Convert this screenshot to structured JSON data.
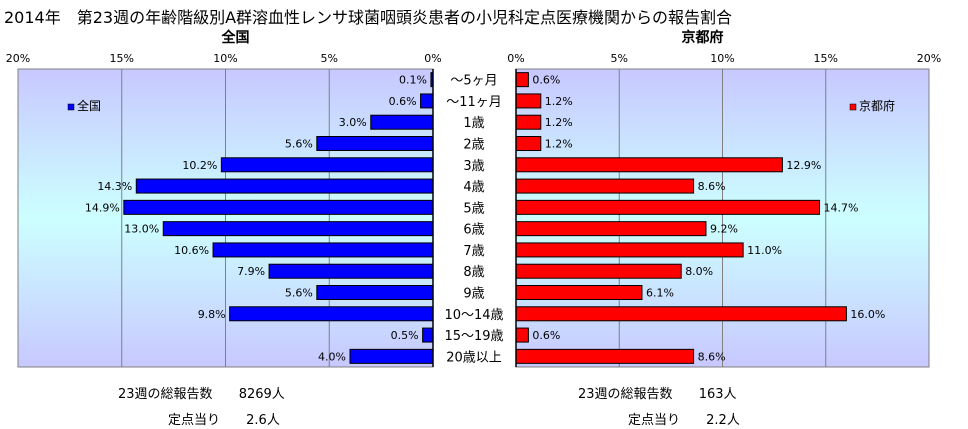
{
  "title": "2014年　第23週の年齢階級別A群溶血性レンサ球菌咽頭炎患者の小児科定点医療機関からの報告割合",
  "left_stats": {
    "total_label": "23週の総報告数",
    "total_value": "8269人",
    "per_label": "定点当り",
    "per_value": "2.6人"
  },
  "right_stats": {
    "total_label": "23週の総報告数",
    "total_value": "163人",
    "per_label": "定点当り",
    "per_value": "2.2人"
  },
  "colors": {
    "left_bar": "#0000ff",
    "right_bar": "#ff0000",
    "plot_bg_top": "#c8c8ff",
    "plot_bg_mid": "#ccffff"
  },
  "chart_data": [
    {
      "type": "bar",
      "orientation": "horizontal-reversed",
      "title": "全国",
      "legend": "全国",
      "legend_position": "top-left",
      "xlim": [
        0,
        20
      ],
      "ticks": [
        "0%",
        "5%",
        "10%",
        "15%",
        "20%"
      ],
      "tick_values": [
        0,
        5,
        10,
        15,
        20
      ],
      "categories": [
        "～5ヶ月",
        "～11ヶ月",
        "1歳",
        "2歳",
        "3歳",
        "4歳",
        "5歳",
        "6歳",
        "7歳",
        "8歳",
        "9歳",
        "10～14歳",
        "15～19歳",
        "20歳以上"
      ],
      "values": [
        0.1,
        0.6,
        3.0,
        5.6,
        10.2,
        14.3,
        14.9,
        13.0,
        10.6,
        7.9,
        5.6,
        9.8,
        0.5,
        4.0
      ],
      "labels": [
        "0.1%",
        "0.6%",
        "3.0%",
        "5.6%",
        "10.2%",
        "14.3%",
        "14.9%",
        "13.0%",
        "10.6%",
        "7.9%",
        "5.6%",
        "9.8%",
        "0.5%",
        "4.0%"
      ],
      "grid": true
    },
    {
      "type": "bar",
      "orientation": "horizontal",
      "title": "京都府",
      "legend": "京都府",
      "legend_position": "top-right",
      "xlim": [
        0,
        20
      ],
      "ticks": [
        "0%",
        "5%",
        "10%",
        "15%",
        "20%"
      ],
      "tick_values": [
        0,
        5,
        10,
        15,
        20
      ],
      "values": [
        0.6,
        1.2,
        1.2,
        1.2,
        12.9,
        8.6,
        14.7,
        9.2,
        11.0,
        8.0,
        6.1,
        16.0,
        0.6,
        8.6
      ],
      "labels": [
        "0.6%",
        "1.2%",
        "1.2%",
        "1.2%",
        "12.9%",
        "8.6%",
        "14.7%",
        "9.2%",
        "11.0%",
        "8.0%",
        "6.1%",
        "16.0%",
        "0.6%",
        "8.6%"
      ],
      "grid": true
    }
  ]
}
